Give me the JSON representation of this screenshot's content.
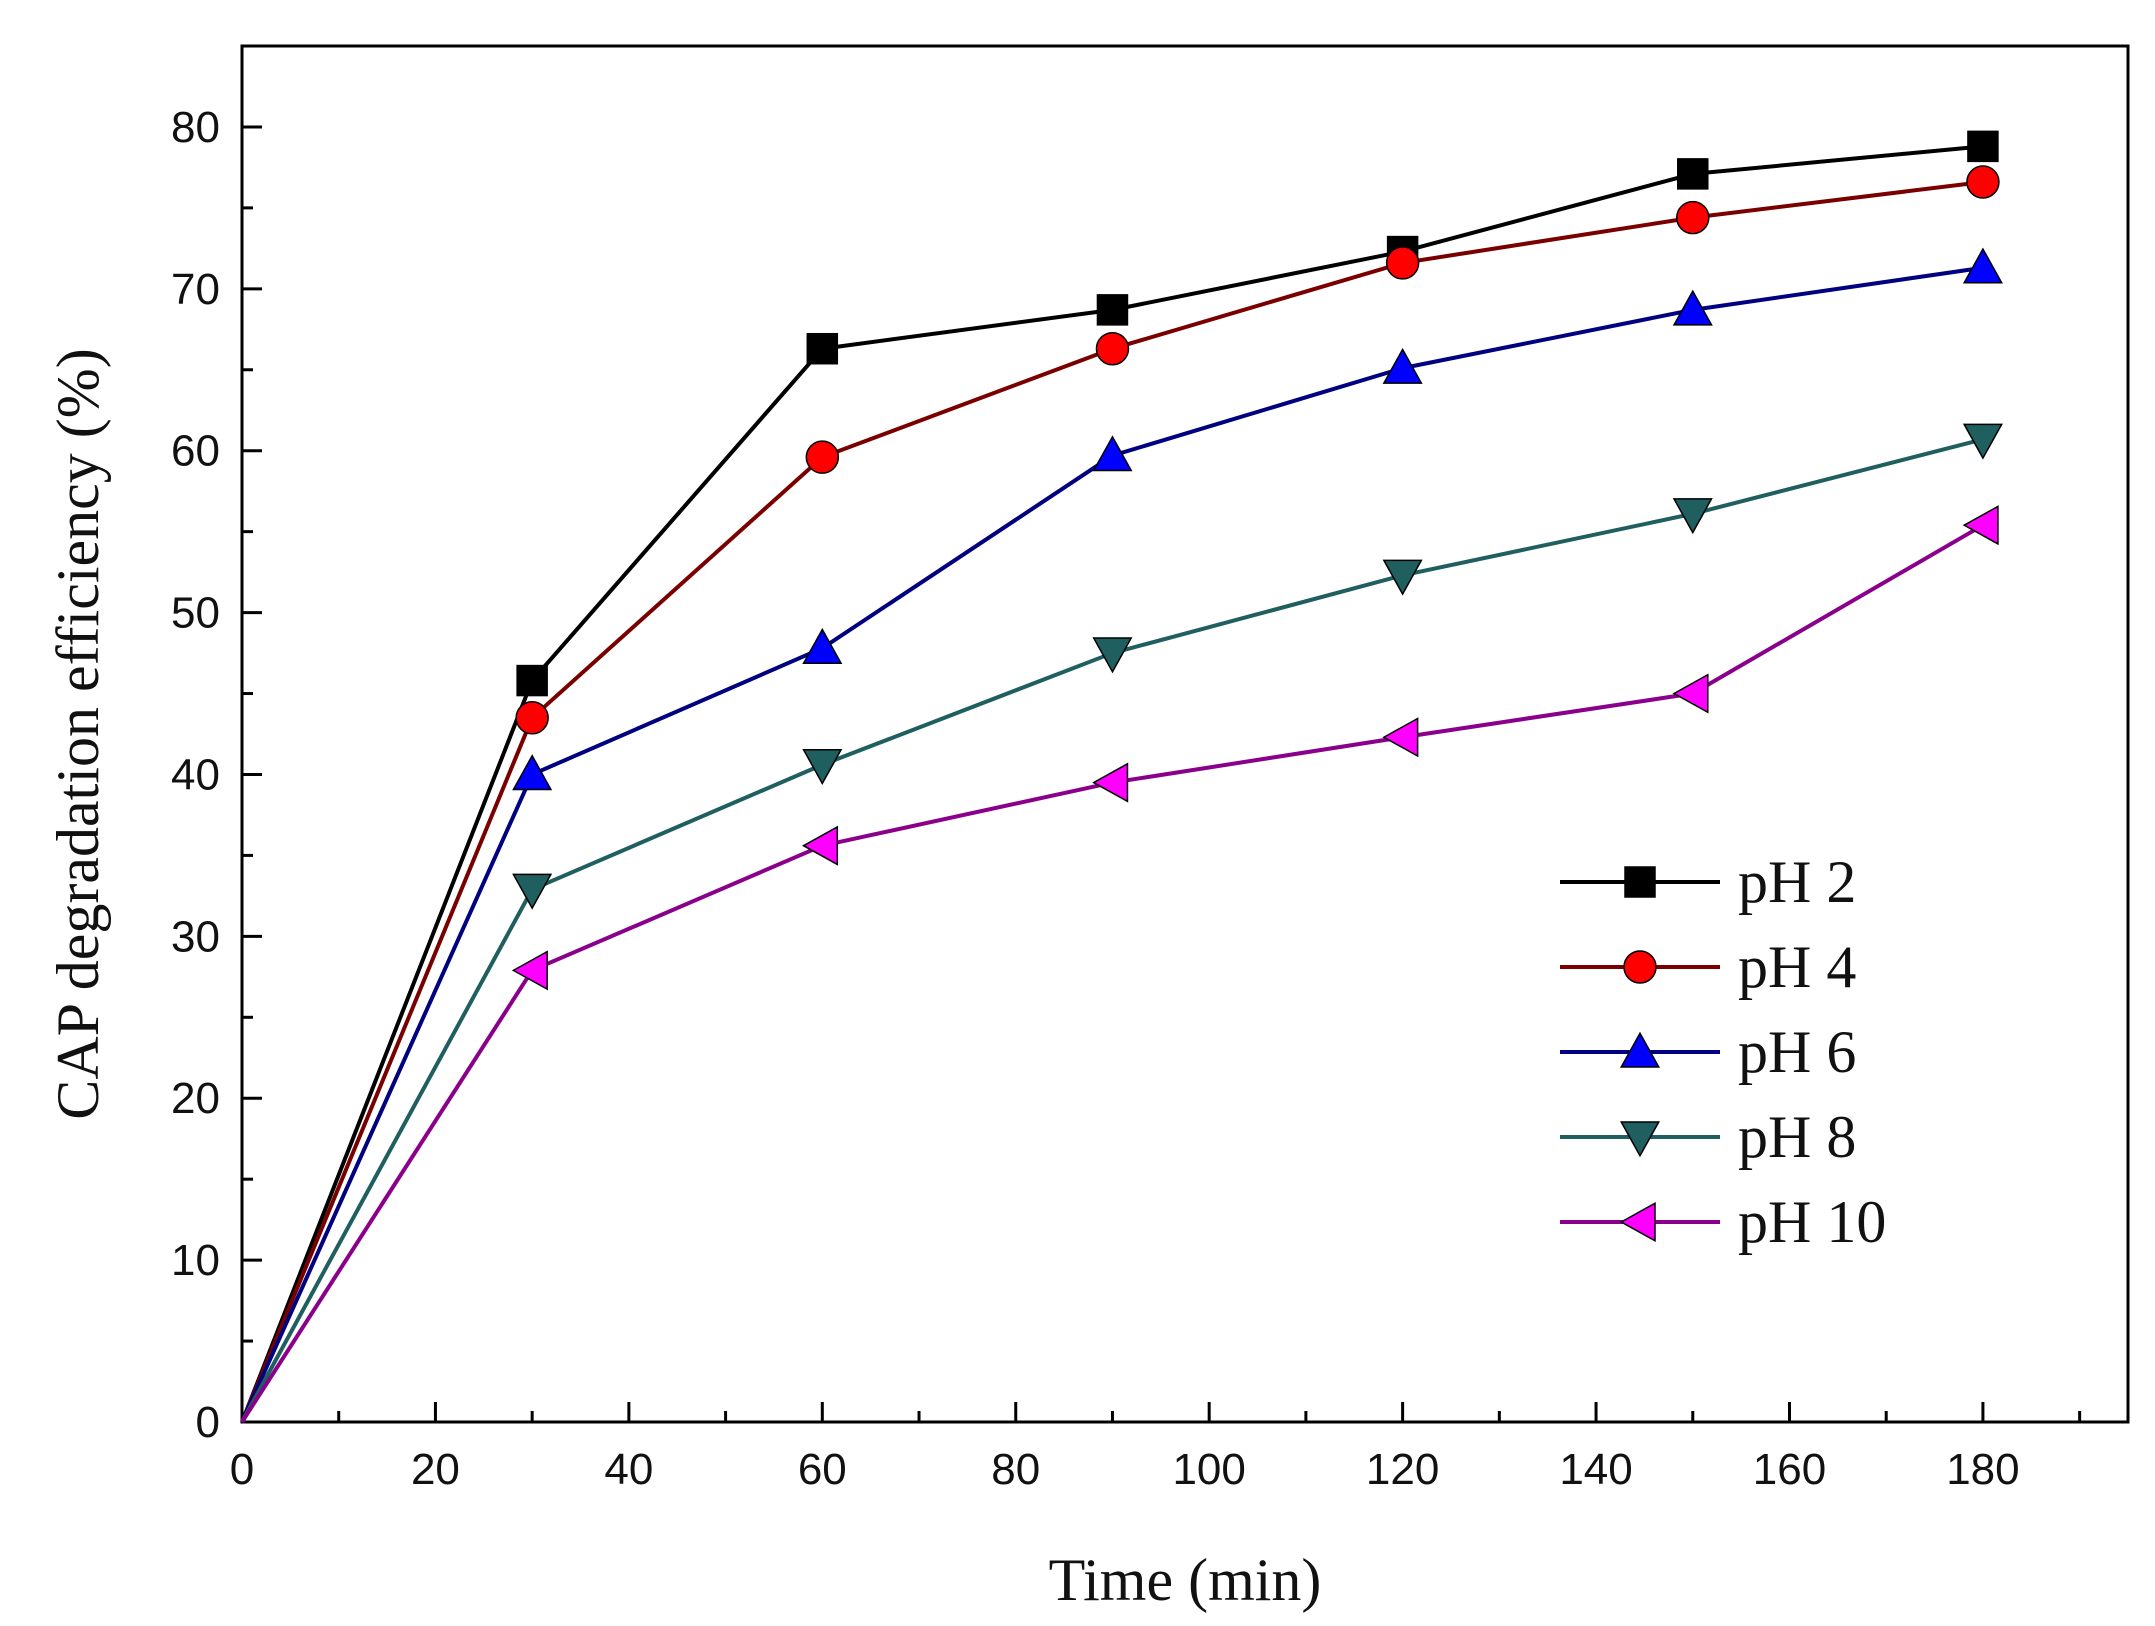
{
  "chart_data": {
    "type": "line",
    "title": "",
    "xlabel": "Time (min)",
    "ylabel": "CAP degradation efficiency (%)",
    "x": [
      0,
      30,
      60,
      90,
      120,
      150,
      180
    ],
    "xlim": [
      0,
      195
    ],
    "ylim": [
      0,
      85
    ],
    "xticks": [
      0,
      20,
      40,
      60,
      80,
      100,
      120,
      140,
      160,
      180
    ],
    "yticks": [
      0,
      10,
      20,
      30,
      40,
      50,
      60,
      70,
      80
    ],
    "grid": false,
    "legend_position": "right",
    "series": [
      {
        "name": "pH 2",
        "marker": "square",
        "color": "#000000",
        "line_color": "#000000",
        "values": [
          0,
          45.8,
          66.3,
          68.7,
          72.3,
          77.1,
          78.8
        ]
      },
      {
        "name": "pH 4",
        "marker": "circle",
        "color": "#ff0000",
        "line_color": "#7a0000",
        "values": [
          0,
          43.5,
          59.6,
          66.3,
          71.6,
          74.4,
          76.6
        ]
      },
      {
        "name": "pH 6",
        "marker": "triangle-up",
        "color": "#0000ff",
        "line_color": "#000080",
        "values": [
          0,
          40.0,
          47.8,
          59.7,
          65.1,
          68.7,
          71.3
        ]
      },
      {
        "name": "pH 8",
        "marker": "triangle-down",
        "color": "#1f5f5f",
        "line_color": "#1f5f5f",
        "values": [
          0,
          32.9,
          40.6,
          47.5,
          52.3,
          56.1,
          60.7
        ]
      },
      {
        "name": "pH 10",
        "marker": "triangle-left",
        "color": "#ff00ff",
        "line_color": "#8b008b",
        "values": [
          0,
          27.9,
          35.6,
          39.5,
          42.3,
          45.0,
          55.4
        ]
      }
    ]
  }
}
